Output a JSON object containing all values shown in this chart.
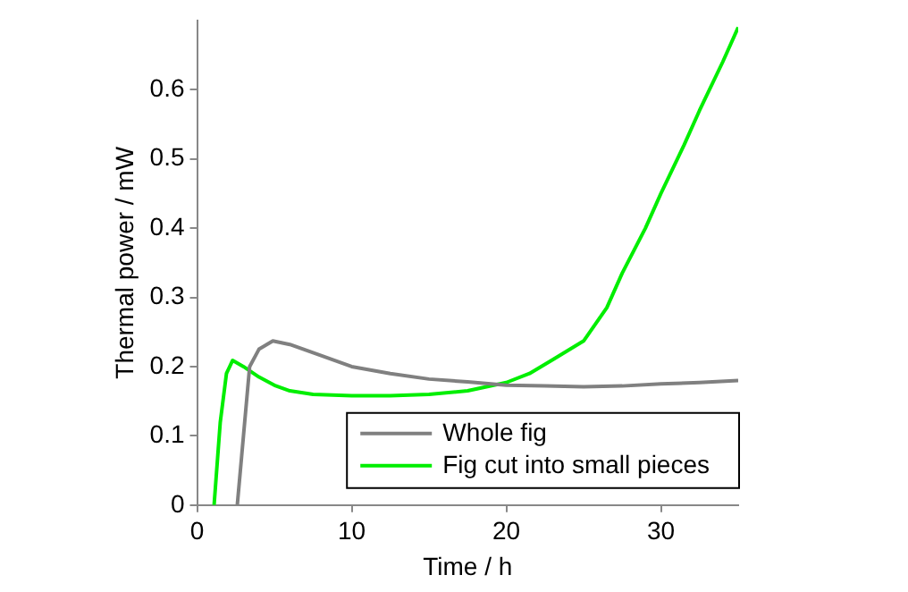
{
  "chart_data": {
    "type": "line",
    "xlabel": "Time / h",
    "ylabel": "Thermal power / mW",
    "xlim": [
      0,
      35
    ],
    "ylim": [
      0,
      0.7
    ],
    "xticks": [
      0,
      10,
      20,
      30
    ],
    "yticks": [
      0,
      0.1,
      0.2,
      0.3,
      0.4,
      0.5,
      0.6
    ],
    "grid": false,
    "legend": "bottom right",
    "marker": "none",
    "line_style": "solid",
    "series": [
      {
        "name": "Whole fig",
        "color": "#808080",
        "x": [
          2.6,
          3.0,
          3.4,
          4.0,
          4.9,
          6,
          7.5,
          10,
          12.5,
          15,
          17.5,
          20,
          22.5,
          25,
          27.5,
          30,
          32.5,
          35
        ],
        "values": [
          0,
          0.1,
          0.2,
          0.225,
          0.237,
          0.232,
          0.22,
          0.2,
          0.19,
          0.182,
          0.178,
          0.173,
          0.172,
          0.171,
          0.172,
          0.175,
          0.177,
          0.18
        ]
      },
      {
        "name": "Fig cut into small pieces",
        "color": "#00ee00",
        "x": [
          1.1,
          1.5,
          1.9,
          2.3,
          3,
          4,
          5,
          6,
          7.5,
          10,
          12.5,
          15,
          17.5,
          20,
          21.5,
          23,
          25,
          26.5,
          27.5,
          29,
          30,
          31.5,
          32.5,
          34,
          35
        ],
        "values": [
          0,
          0.12,
          0.19,
          0.209,
          0.2,
          0.185,
          0.173,
          0.165,
          0.16,
          0.158,
          0.158,
          0.16,
          0.165,
          0.177,
          0.19,
          0.21,
          0.237,
          0.285,
          0.335,
          0.4,
          0.45,
          0.52,
          0.57,
          0.64,
          0.69
        ]
      }
    ]
  }
}
